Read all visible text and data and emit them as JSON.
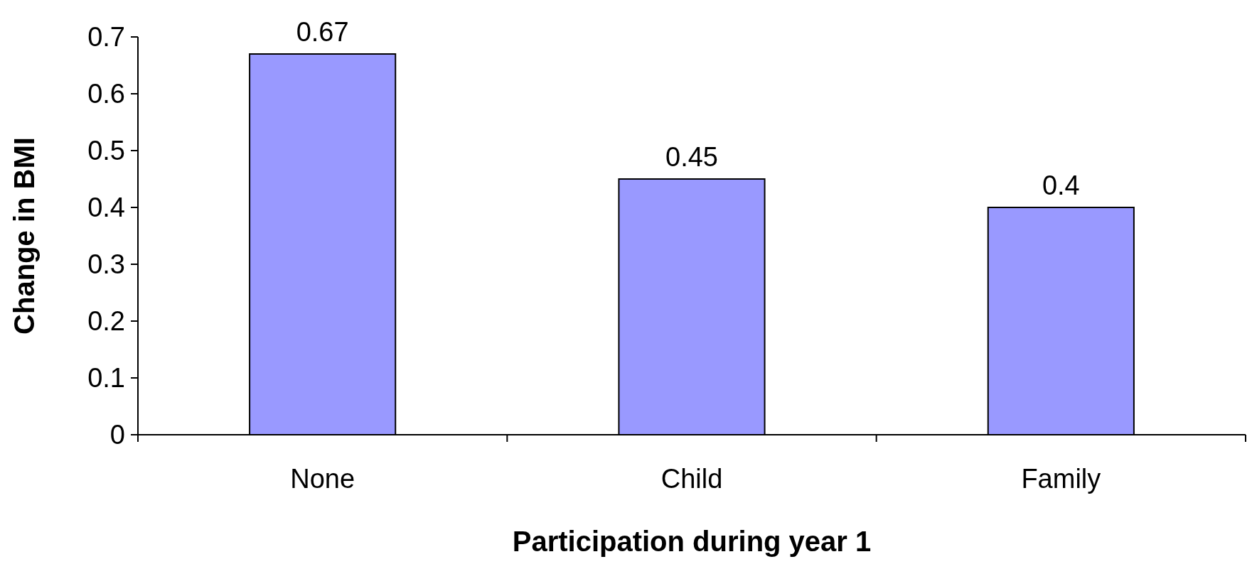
{
  "chart_data": {
    "type": "bar",
    "xlabel": "Participation during year 1",
    "ylabel": "Change in BMI",
    "categories": [
      "None",
      "Child",
      "Family"
    ],
    "values": [
      0.67,
      0.45,
      0.4
    ],
    "color": "#9999ff",
    "ylim": [
      0,
      0.7
    ],
    "yticks": [
      0,
      0.1,
      0.2,
      0.3,
      0.4,
      0.5,
      0.6,
      0.7
    ],
    "data_labels": true
  }
}
